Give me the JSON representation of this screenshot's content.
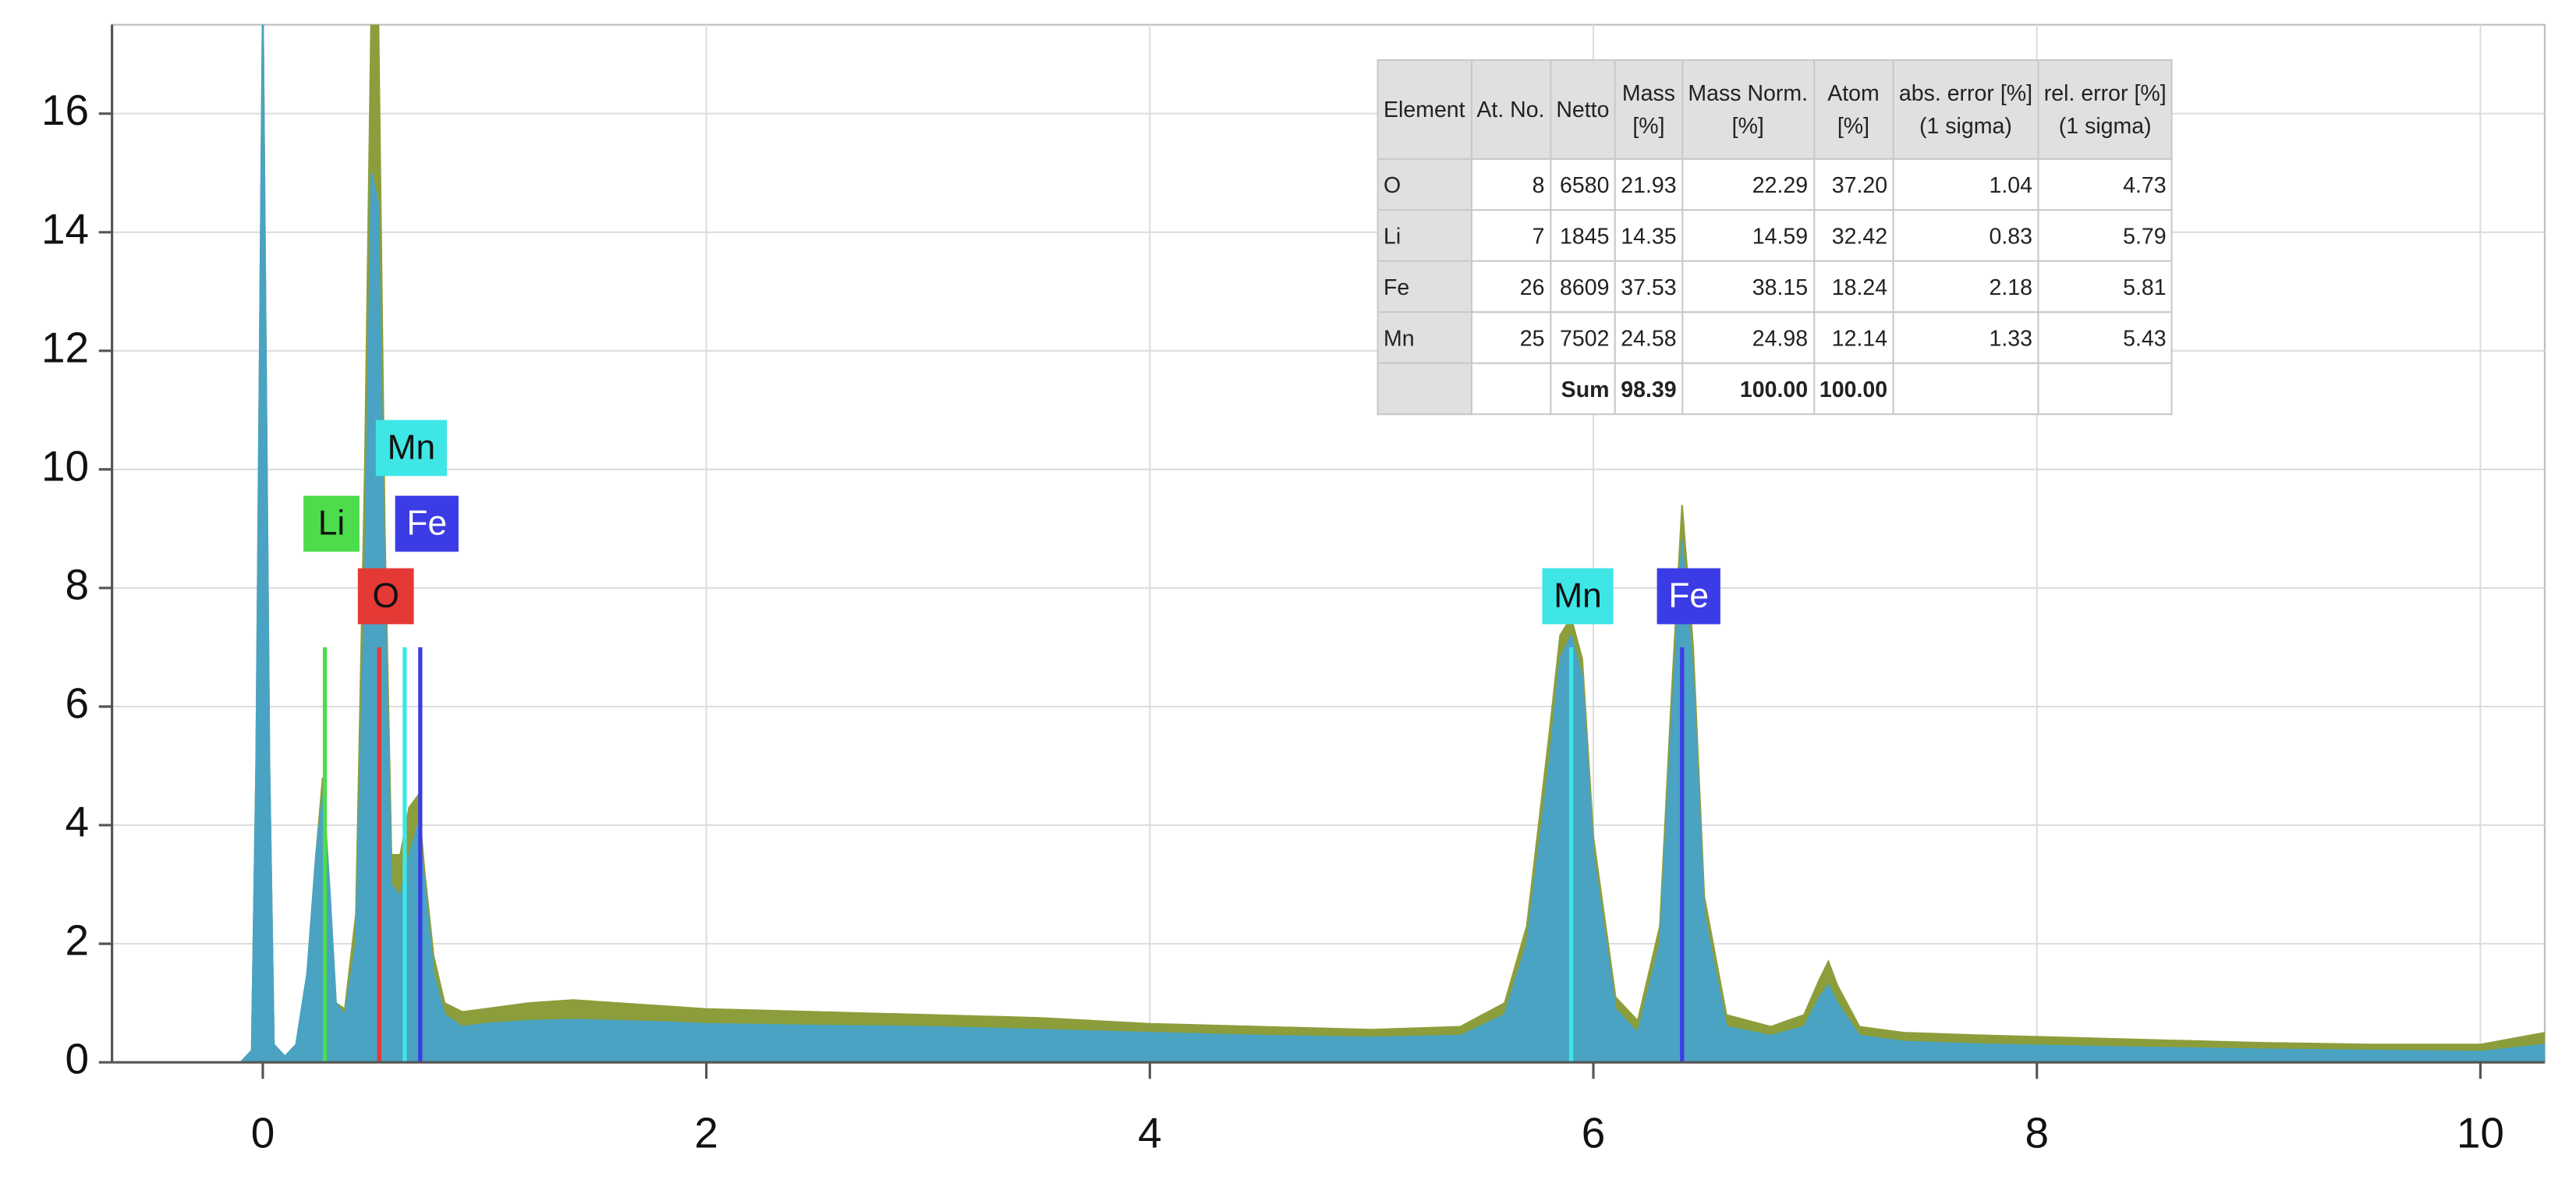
{
  "chart_data": {
    "type": "area",
    "x": [
      -0.1,
      -0.05,
      -0.03,
      0,
      0.03,
      0.05,
      0.1,
      0.15,
      0.2,
      0.24,
      0.27,
      0.3,
      0.33,
      0.37,
      0.42,
      0.46,
      0.49,
      0.52,
      0.55,
      0.58,
      0.62,
      0.66,
      0.7,
      0.73,
      0.77,
      0.82,
      0.9,
      1.0,
      1.2,
      1.4,
      1.6,
      1.8,
      2.0,
      2.5,
      3.0,
      3.5,
      4.0,
      4.5,
      5.0,
      5.4,
      5.6,
      5.7,
      5.8,
      5.85,
      5.9,
      5.95,
      6.0,
      6.1,
      6.2,
      6.3,
      6.35,
      6.4,
      6.45,
      6.5,
      6.6,
      6.8,
      6.95,
      7.02,
      7.06,
      7.1,
      7.2,
      7.4,
      7.8,
      8.5,
      9.0,
      9.5,
      10.0,
      10.29
    ],
    "series": [
      {
        "color": "#8c9e3c",
        "values": [
          0,
          0.2,
          5,
          18,
          5,
          0.3,
          0.1,
          0.3,
          1.5,
          3.5,
          4.8,
          3,
          1,
          0.9,
          2.5,
          10,
          18,
          18,
          9,
          3.5,
          3.5,
          4.3,
          4.5,
          3.2,
          1.8,
          1.0,
          0.85,
          0.9,
          1.0,
          1.05,
          1.0,
          0.95,
          0.9,
          0.85,
          0.8,
          0.75,
          0.65,
          0.6,
          0.55,
          0.6,
          1.0,
          2.3,
          5.5,
          7.2,
          7.5,
          6.8,
          3.8,
          1.1,
          0.7,
          2.3,
          6,
          9.4,
          7,
          2.8,
          0.8,
          0.6,
          0.8,
          1.4,
          1.7,
          1.3,
          0.6,
          0.5,
          0.45,
          0.38,
          0.33,
          0.3,
          0.3,
          0.5
        ]
      },
      {
        "color": "#4aa3c2",
        "values": [
          0,
          0.2,
          5,
          18,
          5,
          0.3,
          0.1,
          0.3,
          1.5,
          3.5,
          4.5,
          3,
          1,
          0.8,
          2,
          8,
          15,
          14.5,
          8,
          3,
          2.8,
          3.5,
          4,
          3,
          1.5,
          0.8,
          0.6,
          0.65,
          0.7,
          0.72,
          0.7,
          0.68,
          0.65,
          0.62,
          0.6,
          0.55,
          0.5,
          0.45,
          0.42,
          0.45,
          0.8,
          2,
          5,
          6.8,
          7.2,
          6.5,
          3.5,
          0.9,
          0.5,
          2,
          5.5,
          8.8,
          6.5,
          2.5,
          0.6,
          0.45,
          0.6,
          1.1,
          1.3,
          1.0,
          0.45,
          0.35,
          0.3,
          0.25,
          0.22,
          0.2,
          0.18,
          0.3
        ]
      }
    ],
    "element_lines": [
      {
        "label": "Li",
        "energy": 0.28,
        "height": 7,
        "color": "#4cdc4c",
        "text_color": "#111111"
      },
      {
        "label": "Mn",
        "energy": 0.64,
        "height": 7,
        "color": "#3ee6e6",
        "text_color": "#111111"
      },
      {
        "label": "Fe",
        "energy": 0.71,
        "height": 7,
        "color": "#3c3ce6",
        "text_color": "#ffffff"
      },
      {
        "label": "O",
        "energy": 0.525,
        "height": 7,
        "color": "#e53935",
        "text_color": "#111111"
      },
      {
        "label": "Mn",
        "energy": 5.9,
        "height": 7,
        "color": "#3ee6e6",
        "text_color": "#111111"
      },
      {
        "label": "Fe",
        "energy": 6.4,
        "height": 7,
        "color": "#3c3ce6",
        "text_color": "#ffffff"
      }
    ],
    "xlim": [
      -0.68,
      10.29
    ],
    "xticks": [
      0,
      2,
      4,
      6,
      8,
      10
    ],
    "ylim": [
      0,
      17.5
    ],
    "yticks": [
      0,
      2,
      4,
      6,
      8,
      10,
      12,
      14,
      16
    ],
    "grid": true,
    "table": {
      "header": [
        [
          "Element"
        ],
        [
          "At. No."
        ],
        [
          "Netto"
        ],
        [
          "Mass",
          "[%]"
        ],
        [
          "Mass Norm.",
          "[%]"
        ],
        [
          "Atom",
          "[%]"
        ],
        [
          "abs. error [%]",
          "(1 sigma)"
        ],
        [
          "rel. error [%]",
          "(1 sigma)"
        ]
      ],
      "rows": [
        [
          "O",
          "8",
          "6580",
          "21.93",
          "22.29",
          "37.20",
          "1.04",
          "4.73"
        ],
        [
          "Li",
          "7",
          "1845",
          "14.35",
          "14.59",
          "32.42",
          "0.83",
          "5.79"
        ],
        [
          "Fe",
          "26",
          "8609",
          "37.53",
          "38.15",
          "18.24",
          "2.18",
          "5.81"
        ],
        [
          "Mn",
          "25",
          "7502",
          "24.58",
          "24.98",
          "12.14",
          "1.33",
          "5.43"
        ],
        [
          null,
          null,
          "Sum",
          "98.39",
          "100.00",
          "100.00",
          null,
          null
        ]
      ]
    }
  }
}
